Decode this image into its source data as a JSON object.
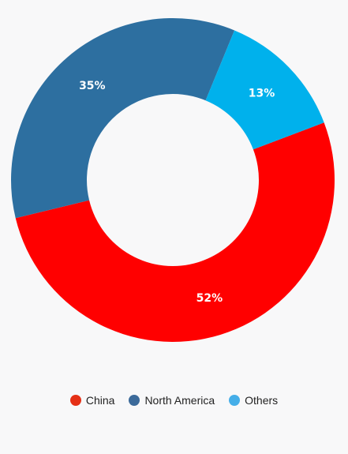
{
  "chart_data": {
    "type": "pie",
    "donut": true,
    "categories": [
      "China",
      "North America",
      "Others"
    ],
    "values": [
      52,
      35,
      13
    ],
    "labels": [
      "52%",
      "35%",
      "13%"
    ],
    "colors": [
      "#ff0000",
      "#2d6fa0",
      "#00b1ec"
    ],
    "legend_colors": [
      "#e53016",
      "#3c6a9a",
      "#45aee8"
    ],
    "legend_position": "bottom-center",
    "title": ""
  }
}
